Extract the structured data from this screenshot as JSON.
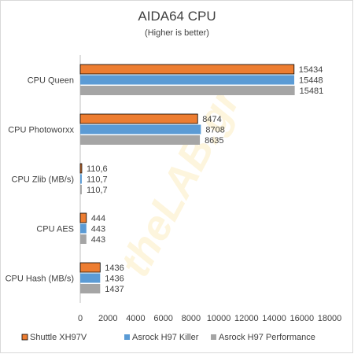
{
  "chart_data": {
    "type": "bar",
    "orientation": "horizontal",
    "title": "AIDA64 CPU",
    "subtitle": "(Higher is better)",
    "categories": [
      "CPU Queen",
      "CPU Photoworxx",
      "CPU Zlib (MB/s)",
      "CPU AES",
      "CPU Hash (MB/s)"
    ],
    "series": [
      {
        "name": "Shuttle XH97V",
        "color": "#ed7d31",
        "values": [
          15434,
          8474,
          110.6,
          444,
          1436
        ],
        "labels": [
          "15434",
          "8474",
          "110,6",
          "444",
          "1436"
        ]
      },
      {
        "name": "Asrock H97 Killer",
        "color": "#5b9bd5",
        "values": [
          15448,
          8708,
          110.7,
          443,
          1436
        ],
        "labels": [
          "15448",
          "8708",
          "110,7",
          "443",
          "1436"
        ]
      },
      {
        "name": "Asrock H97 Performance",
        "color": "#a5a5a5",
        "values": [
          15481,
          8635,
          110.7,
          443,
          1437
        ],
        "labels": [
          "15481",
          "8635",
          "110,7",
          "443",
          "1437"
        ]
      }
    ],
    "xlim": [
      0,
      18000
    ],
    "xticks": [
      0,
      2000,
      4000,
      6000,
      8000,
      10000,
      12000,
      14000,
      16000,
      18000
    ],
    "grid": false,
    "legend_position": "bottom"
  },
  "watermark": "theLAB.gr"
}
